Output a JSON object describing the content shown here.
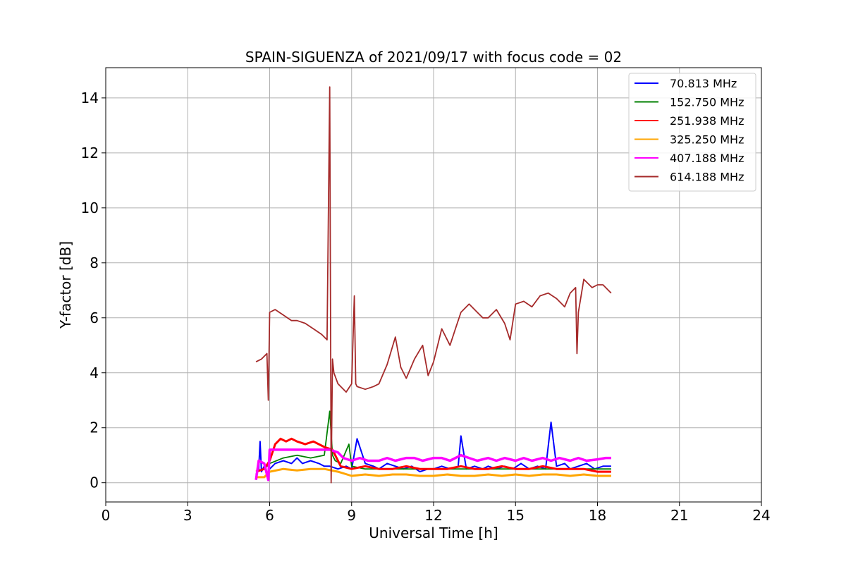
{
  "chart_data": {
    "type": "line",
    "title": "SPAIN-SIGUENZA of 2021/09/17 with focus code = 02",
    "xlabel": "Universal Time [h]",
    "ylabel": "Y-factor [dB]",
    "xlim": [
      0,
      24
    ],
    "ylim": [
      -0.7,
      15.1
    ],
    "xticks": [
      0,
      3,
      6,
      9,
      12,
      15,
      18,
      21,
      24
    ],
    "yticks": [
      0,
      2,
      4,
      6,
      8,
      10,
      12,
      14
    ],
    "grid": true,
    "legend_position": "top-right",
    "series": [
      {
        "name": "70.813 MHz",
        "legend_label": " 70.813 MHz",
        "color": "#0000ff",
        "x": [
          5.5,
          5.6,
          5.65,
          5.7,
          5.8,
          5.9,
          6.0,
          6.1,
          6.2,
          6.5,
          6.8,
          7.0,
          7.2,
          7.5,
          7.8,
          8.0,
          8.2,
          8.5,
          8.8,
          9.0,
          9.2,
          9.5,
          9.8,
          10.0,
          10.3,
          10.6,
          10.9,
          11.2,
          11.5,
          11.8,
          12.0,
          12.3,
          12.6,
          12.9,
          13.0,
          13.2,
          13.5,
          13.8,
          14.0,
          14.3,
          14.6,
          14.9,
          15.2,
          15.5,
          15.8,
          16.1,
          16.3,
          16.5,
          16.8,
          17.0,
          17.3,
          17.6,
          17.9,
          18.2,
          18.5
        ],
        "y": [
          0.3,
          0.5,
          1.5,
          0.4,
          0.6,
          0.3,
          0.5,
          0.6,
          0.7,
          0.8,
          0.7,
          0.9,
          0.7,
          0.8,
          0.7,
          0.6,
          0.6,
          0.5,
          0.6,
          0.5,
          1.6,
          0.7,
          0.6,
          0.5,
          0.7,
          0.6,
          0.5,
          0.6,
          0.4,
          0.5,
          0.5,
          0.6,
          0.5,
          0.6,
          1.7,
          0.5,
          0.6,
          0.5,
          0.6,
          0.5,
          0.6,
          0.5,
          0.7,
          0.5,
          0.6,
          0.5,
          2.2,
          0.6,
          0.7,
          0.5,
          0.6,
          0.7,
          0.5,
          0.6,
          0.6
        ]
      },
      {
        "name": "152.750 MHz",
        "legend_label": "152.750 MHz",
        "color": "#008000",
        "x": [
          5.5,
          5.8,
          6.0,
          6.5,
          7.0,
          7.5,
          8.0,
          8.2,
          8.3,
          8.4,
          8.6,
          8.9,
          9.0,
          9.5,
          10.0,
          11.0,
          12.0,
          13.0,
          14.0,
          15.0,
          16.0,
          17.0,
          18.0,
          18.5
        ],
        "y": [
          0.4,
          0.5,
          0.7,
          0.9,
          1.0,
          0.9,
          1.0,
          2.6,
          1.0,
          0.8,
          0.7,
          1.4,
          0.6,
          0.5,
          0.5,
          0.5,
          0.5,
          0.5,
          0.5,
          0.5,
          0.5,
          0.5,
          0.5,
          0.5
        ]
      },
      {
        "name": "251.938 MHz",
        "legend_label": "251.938 MHz",
        "color": "#ff0000",
        "x": [
          5.5,
          5.8,
          6.0,
          6.2,
          6.4,
          6.6,
          6.8,
          7.0,
          7.3,
          7.6,
          8.0,
          8.3,
          8.6,
          9.0,
          9.5,
          10.0,
          10.5,
          11.0,
          11.5,
          12.0,
          12.5,
          13.0,
          13.5,
          14.0,
          14.5,
          15.0,
          15.5,
          16.0,
          16.5,
          17.0,
          17.5,
          18.0,
          18.5
        ],
        "y": [
          0.4,
          0.5,
          0.8,
          1.4,
          1.6,
          1.5,
          1.6,
          1.5,
          1.4,
          1.5,
          1.3,
          1.2,
          0.6,
          0.5,
          0.6,
          0.5,
          0.5,
          0.6,
          0.5,
          0.5,
          0.5,
          0.6,
          0.5,
          0.5,
          0.6,
          0.5,
          0.5,
          0.6,
          0.5,
          0.5,
          0.5,
          0.4,
          0.4
        ]
      },
      {
        "name": "325.250 MHz",
        "legend_label": "325.250 MHz",
        "color": "#ffa500",
        "x": [
          5.5,
          5.8,
          6.0,
          6.5,
          7.0,
          7.5,
          8.0,
          8.5,
          9.0,
          9.5,
          10.0,
          10.5,
          11.0,
          11.5,
          12.0,
          12.5,
          13.0,
          13.5,
          14.0,
          14.5,
          15.0,
          15.5,
          16.0,
          16.5,
          17.0,
          17.5,
          18.0,
          18.5
        ],
        "y": [
          0.2,
          0.2,
          0.4,
          0.5,
          0.45,
          0.5,
          0.5,
          0.4,
          0.25,
          0.3,
          0.25,
          0.3,
          0.3,
          0.25,
          0.25,
          0.3,
          0.25,
          0.25,
          0.3,
          0.25,
          0.3,
          0.25,
          0.3,
          0.3,
          0.25,
          0.3,
          0.25,
          0.25
        ]
      },
      {
        "name": "407.188 MHz",
        "legend_label": "407.188 MHz",
        "color": "#ff00ff",
        "x": [
          5.5,
          5.6,
          5.8,
          5.95,
          6.0,
          6.3,
          6.6,
          7.0,
          7.4,
          7.8,
          8.2,
          8.5,
          8.7,
          9.0,
          9.3,
          9.6,
          10.0,
          10.3,
          10.6,
          11.0,
          11.3,
          11.6,
          12.0,
          12.3,
          12.6,
          13.0,
          13.3,
          13.6,
          14.0,
          14.3,
          14.6,
          15.0,
          15.3,
          15.6,
          16.0,
          16.3,
          16.6,
          17.0,
          17.3,
          17.6,
          18.0,
          18.3,
          18.5
        ],
        "y": [
          0.1,
          0.8,
          0.7,
          0.1,
          1.2,
          1.2,
          1.2,
          1.2,
          1.2,
          1.2,
          1.2,
          1.1,
          0.9,
          0.8,
          0.9,
          0.8,
          0.8,
          0.9,
          0.8,
          0.9,
          0.9,
          0.8,
          0.9,
          0.9,
          0.8,
          1.0,
          0.9,
          0.8,
          0.9,
          0.8,
          0.9,
          0.8,
          0.9,
          0.8,
          0.9,
          0.8,
          0.9,
          0.8,
          0.9,
          0.8,
          0.85,
          0.9,
          0.9
        ]
      },
      {
        "name": "614.188 MHz",
        "legend_label": "614.188 MHz",
        "color": "#a52a2a",
        "x": [
          5.5,
          5.7,
          5.9,
          5.95,
          6.0,
          6.2,
          6.5,
          6.8,
          7.0,
          7.3,
          7.6,
          7.9,
          8.1,
          8.2,
          8.25,
          8.3,
          8.35,
          8.5,
          8.8,
          9.0,
          9.1,
          9.15,
          9.2,
          9.5,
          9.8,
          10.0,
          10.3,
          10.6,
          10.8,
          11.0,
          11.3,
          11.6,
          11.8,
          12.0,
          12.3,
          12.6,
          12.8,
          13.0,
          13.3,
          13.6,
          13.8,
          14.0,
          14.3,
          14.6,
          14.8,
          15.0,
          15.3,
          15.6,
          15.9,
          16.2,
          16.5,
          16.8,
          17.0,
          17.2,
          17.25,
          17.3,
          17.5,
          17.8,
          18.0,
          18.2,
          18.5
        ],
        "y": [
          4.4,
          4.5,
          4.7,
          3.0,
          6.2,
          6.3,
          6.1,
          5.9,
          5.9,
          5.8,
          5.6,
          5.4,
          5.2,
          14.4,
          0.0,
          4.5,
          4.0,
          3.6,
          3.3,
          3.6,
          6.8,
          3.6,
          3.5,
          3.4,
          3.5,
          3.6,
          4.3,
          5.3,
          4.2,
          3.8,
          4.5,
          5.0,
          3.9,
          4.4,
          5.6,
          5.0,
          5.6,
          6.2,
          6.5,
          6.2,
          6.0,
          6.0,
          6.3,
          5.8,
          5.2,
          6.5,
          6.6,
          6.4,
          6.8,
          6.9,
          6.7,
          6.4,
          6.9,
          7.1,
          4.7,
          6.2,
          7.4,
          7.1,
          7.2,
          7.2,
          6.9
        ]
      }
    ]
  }
}
